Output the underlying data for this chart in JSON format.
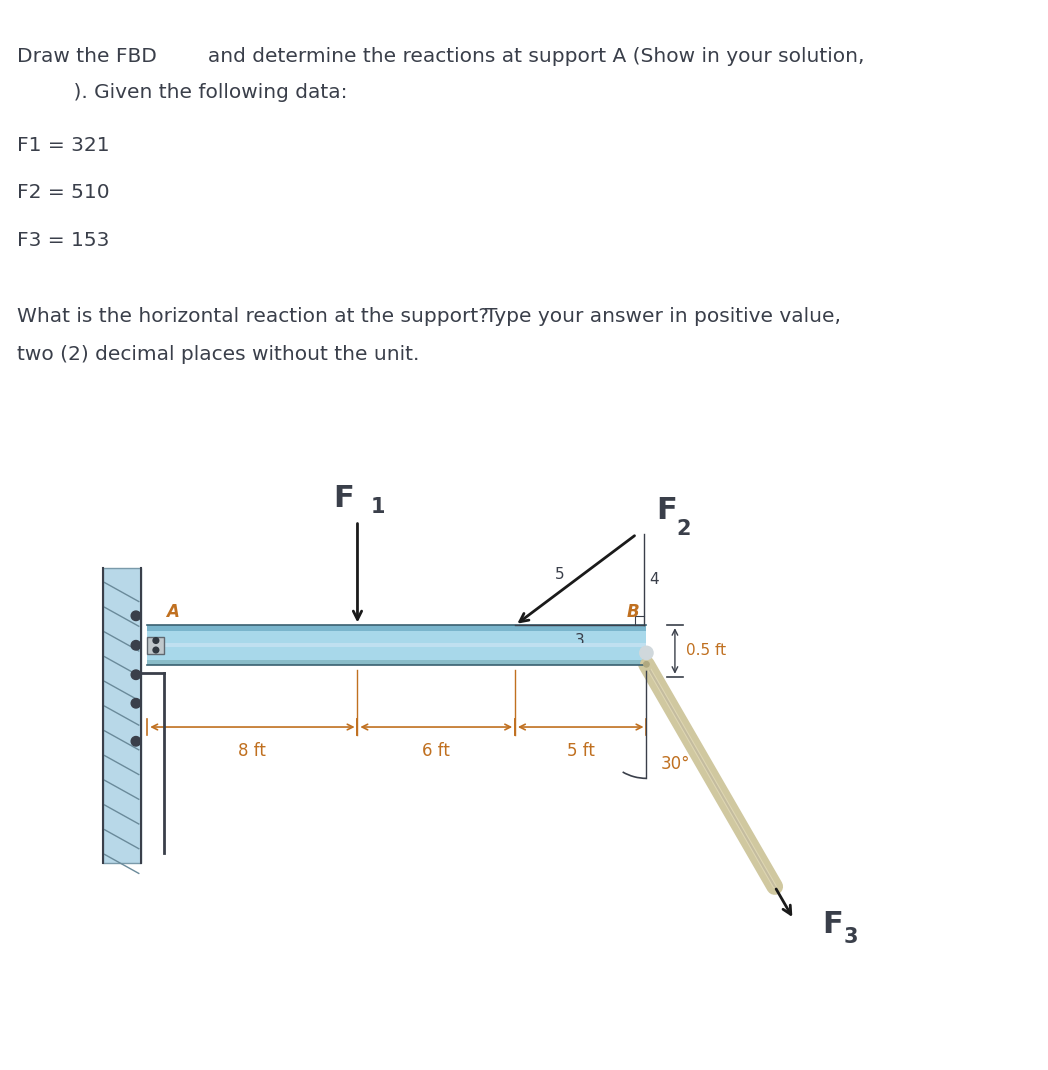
{
  "title_line1": "Draw the FBD        and determine the reactions at support A (Show in your solution,",
  "title_line2": "    ). Given the following data:",
  "F1_label": "F1 = 321",
  "F2_label": "F2 = 510",
  "F3_label": "F3 = 153",
  "question_left": "What is the horizontal reaction at the support?",
  "question_right": "Type your answer in positive value,",
  "question_line2": "two (2) decimal places without the unit.",
  "text_color": "#3a3f4a",
  "text_color_orange": "#c07020",
  "bg_color": "#ffffff",
  "beam_color": "#a8d8ea",
  "beam_dark": "#7ab0c8",
  "beam_light": "#c8e8f5",
  "wall_color": "#a8d8ea",
  "strut_color": "#d0c8a0",
  "strut_dark": "#908870",
  "angle_label": "30°",
  "point_A_label": "A",
  "point_B_label": "B",
  "dist_1": "8 ft",
  "dist_2": "6 ft",
  "dist_3": "5 ft",
  "dist_05": "0.5 ft",
  "ratio_label_5": "5",
  "ratio_label_4": "4",
  "ratio_label_3": "3",
  "F1_force_label": "F",
  "F1_sub": "1",
  "F2_force_label": "F",
  "F2_sub": "2",
  "F3_force_label": "F",
  "F3_sub": "3"
}
